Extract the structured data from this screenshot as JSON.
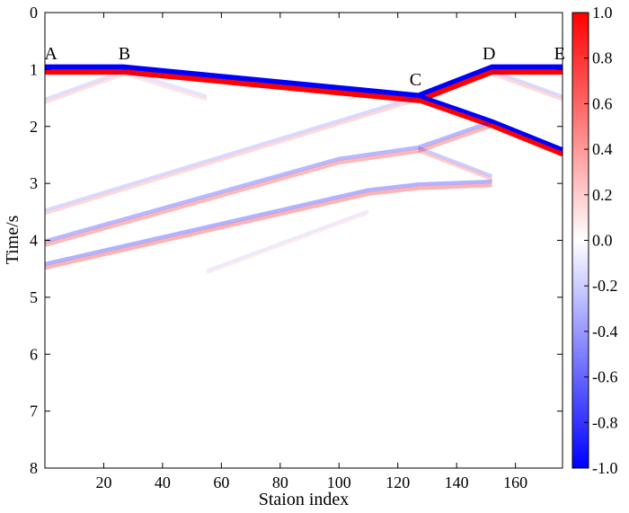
{
  "chart_data": {
    "type": "heatmap",
    "title": "",
    "xlabel": "Staion index",
    "ylabel": "Time/s",
    "xlim": [
      0,
      176
    ],
    "ylim": [
      8,
      0
    ],
    "x_ticks": [
      20,
      40,
      60,
      80,
      100,
      120,
      140,
      160
    ],
    "y_ticks": [
      0,
      1,
      2,
      3,
      4,
      5,
      6,
      7,
      8
    ],
    "colorbar": {
      "range": [
        -1.0,
        1.0
      ],
      "ticks": [
        "1.0",
        "0.8",
        "0.6",
        "0.4",
        "0.2",
        "0.0",
        "-0.2",
        "-0.4",
        "-0.6",
        "-0.8",
        "-1.0"
      ],
      "colors": {
        "negative": "#0000ff",
        "zero": "#ffffff",
        "positive": "#ff0000"
      }
    },
    "point_labels": [
      {
        "text": "A",
        "x": 2,
        "y": 0.82
      },
      {
        "text": "B",
        "x": 27,
        "y": 0.82
      },
      {
        "text": "C",
        "x": 126,
        "y": 1.28
      },
      {
        "text": "D",
        "x": 151,
        "y": 0.82
      },
      {
        "text": "E",
        "x": 175,
        "y": 0.82
      }
    ],
    "events": [
      {
        "name": "primary",
        "points": [
          [
            0,
            1.0
          ],
          [
            27,
            1.0
          ],
          [
            127,
            1.5
          ],
          [
            152,
            1.0
          ],
          [
            176,
            1.0
          ]
        ],
        "amplitude": 1.0,
        "thickness": 0.08
      },
      {
        "name": "branch",
        "points": [
          [
            127,
            1.5
          ],
          [
            152,
            1.95
          ],
          [
            176,
            2.45
          ]
        ],
        "amplitude": 1.0,
        "thickness": 0.07
      },
      {
        "name": "diffraction-left",
        "points": [
          [
            0,
            1.55
          ],
          [
            27,
            1.05
          ]
        ],
        "amplitude": 0.12,
        "thickness": 0.05
      },
      {
        "name": "diffraction-right",
        "points": [
          [
            27,
            1.05
          ],
          [
            55,
            1.5
          ]
        ],
        "amplitude": 0.1,
        "thickness": 0.05
      },
      {
        "name": "mult-1",
        "points": [
          [
            0,
            3.5
          ],
          [
            127,
            1.5
          ]
        ],
        "amplitude": 0.15,
        "thickness": 0.05
      },
      {
        "name": "mult-2",
        "points": [
          [
            0,
            4.05
          ],
          [
            100,
            2.6
          ],
          [
            127,
            2.4
          ],
          [
            152,
            1.95
          ]
        ],
        "amplitude": 0.28,
        "thickness": 0.06
      },
      {
        "name": "mult-3",
        "points": [
          [
            0,
            4.45
          ],
          [
            110,
            3.15
          ],
          [
            127,
            3.05
          ],
          [
            152,
            3.0
          ]
        ],
        "amplitude": 0.3,
        "thickness": 0.06
      },
      {
        "name": "mult-4",
        "points": [
          [
            127,
            2.4
          ],
          [
            152,
            2.9
          ]
        ],
        "amplitude": 0.2,
        "thickness": 0.05
      },
      {
        "name": "mult-5",
        "points": [
          [
            152,
            1.05
          ],
          [
            176,
            1.5
          ]
        ],
        "amplitude": 0.15,
        "thickness": 0.05
      },
      {
        "name": "mult-6",
        "points": [
          [
            55,
            4.55
          ],
          [
            110,
            3.5
          ]
        ],
        "amplitude": 0.08,
        "thickness": 0.04
      }
    ]
  }
}
